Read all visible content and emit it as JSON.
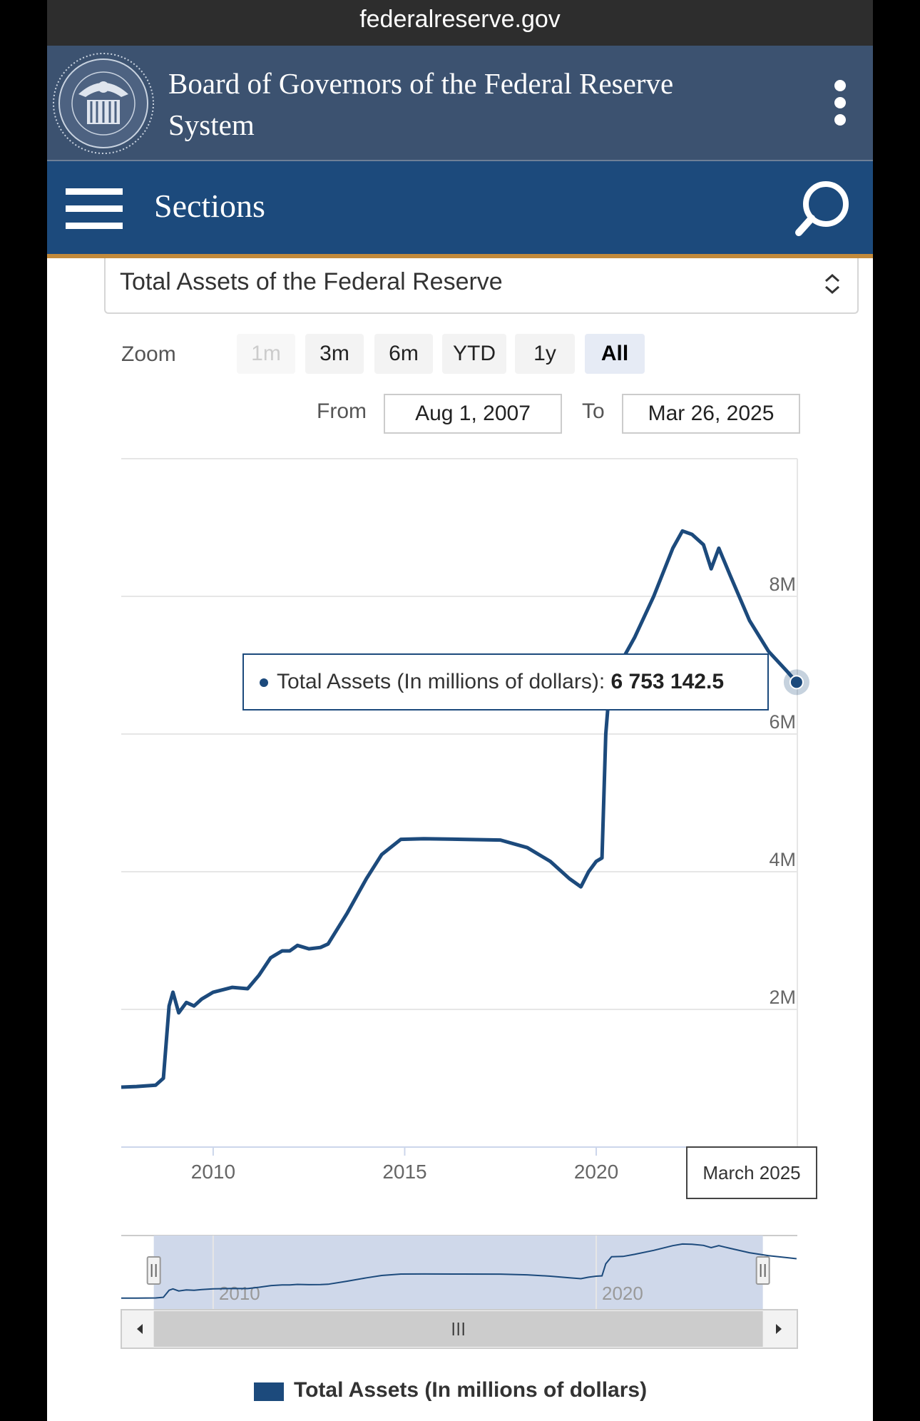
{
  "browser": {
    "url": "federalreserve.gov"
  },
  "header": {
    "title": "Board of Governors of the Federal Reserve System",
    "menu_icon": "kebab-menu-icon"
  },
  "nav": {
    "sections_label": "Sections",
    "menu_icon": "hamburger-icon",
    "search_icon": "search-icon"
  },
  "selector": {
    "selected": "Total Assets of the Federal Reserve"
  },
  "zoom": {
    "label": "Zoom",
    "buttons": [
      {
        "label": "1m",
        "state": "disabled"
      },
      {
        "label": "3m",
        "state": "normal"
      },
      {
        "label": "6m",
        "state": "normal"
      },
      {
        "label": "YTD",
        "state": "normal"
      },
      {
        "label": "1y",
        "state": "normal"
      },
      {
        "label": "All",
        "state": "active"
      }
    ]
  },
  "range": {
    "from_label": "From",
    "from_value": "Aug 1, 2007",
    "to_label": "To",
    "to_value": "Mar 26, 2025"
  },
  "tooltip": {
    "series": "Total Assets (In millions of dollars):",
    "value": "6 753 142.5"
  },
  "hover_date": "March 2025",
  "colors": {
    "series": "#1c4a7c",
    "header": "#3c5270",
    "nav": "#1c4a7c",
    "accent": "#c28a3b"
  },
  "chart_data": {
    "type": "line",
    "title": "",
    "xlabel": "",
    "ylabel": "",
    "x_ticks": [
      "2010",
      "2015",
      "2020"
    ],
    "y_ticks": [
      "2M",
      "4M",
      "6M",
      "8M"
    ],
    "xlim": [
      2007.6,
      2025.25
    ],
    "ylim": [
      0,
      10000000
    ],
    "grid": true,
    "legend": "bottom",
    "series": [
      {
        "name": "Total Assets (In millions of dollars)",
        "points": [
          [
            2007.6,
            870000
          ],
          [
            2008.0,
            880000
          ],
          [
            2008.5,
            900000
          ],
          [
            2008.7,
            1000000
          ],
          [
            2008.85,
            2050000
          ],
          [
            2008.95,
            2250000
          ],
          [
            2009.1,
            1950000
          ],
          [
            2009.3,
            2100000
          ],
          [
            2009.5,
            2050000
          ],
          [
            2009.7,
            2150000
          ],
          [
            2010.0,
            2250000
          ],
          [
            2010.5,
            2320000
          ],
          [
            2010.9,
            2300000
          ],
          [
            2011.2,
            2500000
          ],
          [
            2011.5,
            2750000
          ],
          [
            2011.8,
            2850000
          ],
          [
            2012.0,
            2850000
          ],
          [
            2012.2,
            2930000
          ],
          [
            2012.5,
            2880000
          ],
          [
            2012.8,
            2900000
          ],
          [
            2013.0,
            2950000
          ],
          [
            2013.5,
            3400000
          ],
          [
            2014.0,
            3900000
          ],
          [
            2014.4,
            4250000
          ],
          [
            2014.9,
            4470000
          ],
          [
            2015.5,
            4480000
          ],
          [
            2016.5,
            4470000
          ],
          [
            2017.5,
            4460000
          ],
          [
            2018.2,
            4350000
          ],
          [
            2018.8,
            4150000
          ],
          [
            2019.3,
            3900000
          ],
          [
            2019.6,
            3780000
          ],
          [
            2019.8,
            4000000
          ],
          [
            2020.0,
            4150000
          ],
          [
            2020.15,
            4200000
          ],
          [
            2020.25,
            6000000
          ],
          [
            2020.4,
            7050000
          ],
          [
            2020.7,
            7100000
          ],
          [
            2021.0,
            7400000
          ],
          [
            2021.5,
            8000000
          ],
          [
            2022.0,
            8700000
          ],
          [
            2022.25,
            8950000
          ],
          [
            2022.5,
            8900000
          ],
          [
            2022.8,
            8750000
          ],
          [
            2023.0,
            8400000
          ],
          [
            2023.2,
            8700000
          ],
          [
            2023.5,
            8300000
          ],
          [
            2024.0,
            7650000
          ],
          [
            2024.5,
            7200000
          ],
          [
            2025.0,
            6900000
          ],
          [
            2025.23,
            6753142.5
          ]
        ]
      }
    ],
    "navigator": {
      "x_ticks": [
        "2010",
        "2020"
      ]
    }
  }
}
